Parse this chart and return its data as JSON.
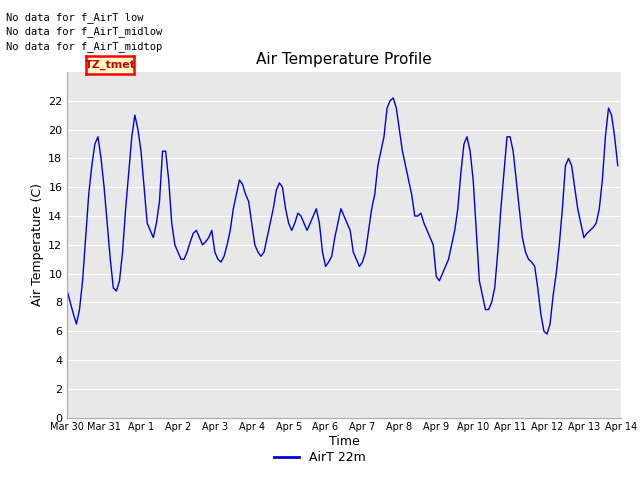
{
  "title": "Air Temperature Profile",
  "xlabel": "Time",
  "ylabel": "Air Temperature (C)",
  "legend_label": "AirT 22m",
  "line_color": "#0000dd",
  "background_color": "#ffffff",
  "plot_bg_color": "#e8e8e8",
  "grid_color": "#ffffff",
  "ylim": [
    0,
    23
  ],
  "yticks": [
    0,
    2,
    4,
    6,
    8,
    10,
    12,
    14,
    16,
    18,
    20,
    22
  ],
  "annotations": [
    "No data for f_AirT low",
    "No data for f_AirT_midlow",
    "No data for f_AirT_midtop"
  ],
  "tz_label": "TZ_tmet",
  "xtick_labels": [
    "Mar 30",
    "Mar 31",
    "Apr 1",
    "Apr 2",
    "Apr 3",
    "Apr 4",
    "Apr 5",
    "Apr 6",
    "Apr 7",
    "Apr 8",
    "Apr 9",
    "Apr 10",
    "Apr 11",
    "Apr 12",
    "Apr 13",
    "Apr 14"
  ],
  "data_x": [
    0.0,
    0.083,
    0.167,
    0.25,
    0.333,
    0.417,
    0.5,
    0.583,
    0.667,
    0.75,
    0.833,
    0.917,
    1.0,
    1.083,
    1.167,
    1.25,
    1.333,
    1.417,
    1.5,
    1.583,
    1.667,
    1.75,
    1.833,
    1.917,
    2.0,
    2.083,
    2.167,
    2.25,
    2.333,
    2.417,
    2.5,
    2.583,
    2.667,
    2.75,
    2.833,
    2.917,
    3.0,
    3.083,
    3.167,
    3.25,
    3.333,
    3.417,
    3.5,
    3.583,
    3.667,
    3.75,
    3.833,
    3.917,
    4.0,
    4.083,
    4.167,
    4.25,
    4.333,
    4.417,
    4.5,
    4.583,
    4.667,
    4.75,
    4.833,
    4.917,
    5.0,
    5.083,
    5.167,
    5.25,
    5.333,
    5.417,
    5.5,
    5.583,
    5.667,
    5.75,
    5.833,
    5.917,
    6.0,
    6.083,
    6.167,
    6.25,
    6.333,
    6.417,
    6.5,
    6.583,
    6.667,
    6.75,
    6.833,
    6.917,
    7.0,
    7.083,
    7.167,
    7.25,
    7.333,
    7.417,
    7.5,
    7.583,
    7.667,
    7.75,
    7.833,
    7.917,
    8.0,
    8.083,
    8.167,
    8.25,
    8.333,
    8.417,
    8.5,
    8.583,
    8.667,
    8.75,
    8.833,
    8.917,
    9.0,
    9.083,
    9.167,
    9.25,
    9.333,
    9.417,
    9.5,
    9.583,
    9.667,
    9.75,
    9.833,
    9.917,
    10.0,
    10.083,
    10.167,
    10.25,
    10.333,
    10.417,
    10.5,
    10.583,
    10.667,
    10.75,
    10.833,
    10.917,
    11.0,
    11.083,
    11.167,
    11.25,
    11.333,
    11.417,
    11.5,
    11.583,
    11.667,
    11.75,
    11.833,
    11.917,
    12.0,
    12.083,
    12.167,
    12.25,
    12.333,
    12.417,
    12.5,
    12.583,
    12.667,
    12.75,
    12.833,
    12.917,
    13.0,
    13.083,
    13.167,
    13.25,
    13.333,
    13.417,
    13.5,
    13.583,
    13.667,
    13.75,
    13.833,
    13.917,
    14.0,
    14.083,
    14.167,
    14.25,
    14.333,
    14.417,
    14.5,
    14.583,
    14.667,
    14.75,
    14.833,
    14.917
  ],
  "data_y": [
    8.8,
    8.0,
    7.2,
    6.5,
    7.5,
    9.5,
    12.5,
    15.5,
    17.5,
    19.0,
    19.5,
    18.0,
    16.0,
    13.5,
    11.0,
    9.0,
    8.8,
    9.5,
    11.5,
    14.5,
    17.0,
    19.5,
    21.0,
    20.0,
    18.5,
    16.0,
    13.5,
    13.0,
    12.5,
    13.5,
    15.0,
    18.5,
    18.5,
    16.5,
    13.5,
    12.0,
    11.5,
    11.0,
    11.0,
    11.5,
    12.2,
    12.8,
    13.0,
    12.5,
    12.0,
    12.2,
    12.5,
    13.0,
    11.5,
    11.0,
    10.8,
    11.2,
    12.0,
    13.0,
    14.5,
    15.5,
    16.5,
    16.2,
    15.5,
    15.0,
    13.5,
    12.0,
    11.5,
    11.2,
    11.5,
    12.5,
    13.5,
    14.5,
    15.8,
    16.3,
    16.0,
    14.5,
    13.5,
    13.0,
    13.5,
    14.2,
    14.0,
    13.5,
    13.0,
    13.5,
    14.0,
    14.5,
    13.5,
    11.5,
    10.5,
    10.8,
    11.2,
    12.5,
    13.5,
    14.5,
    14.0,
    13.5,
    13.0,
    11.5,
    11.0,
    10.5,
    10.8,
    11.5,
    13.0,
    14.5,
    15.5,
    17.5,
    18.5,
    19.5,
    21.5,
    22.0,
    22.2,
    21.5,
    20.0,
    18.5,
    17.5,
    16.5,
    15.5,
    14.0,
    14.0,
    14.2,
    13.5,
    13.0,
    12.5,
    12.0,
    9.8,
    9.5,
    10.0,
    10.5,
    11.0,
    12.0,
    13.0,
    14.5,
    17.0,
    19.0,
    19.5,
    18.5,
    16.5,
    13.0,
    9.5,
    8.5,
    7.5,
    7.5,
    8.0,
    9.0,
    11.5,
    14.5,
    17.0,
    19.5,
    19.5,
    18.5,
    16.5,
    14.5,
    12.5,
    11.5,
    11.0,
    10.8,
    10.5,
    9.0,
    7.2,
    6.0,
    5.8,
    6.5,
    8.5,
    10.0,
    12.0,
    14.5,
    17.5,
    18.0,
    17.5,
    16.0,
    14.5,
    13.5,
    12.5,
    12.8,
    13.0,
    13.2,
    13.5,
    14.5,
    16.5,
    19.5,
    21.5,
    21.0,
    19.5,
    17.5
  ]
}
